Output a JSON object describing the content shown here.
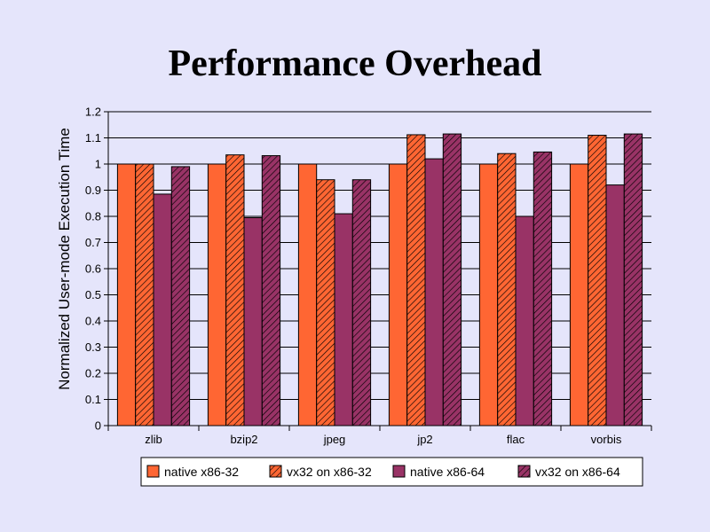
{
  "chart_data": {
    "type": "bar",
    "title": "Performance Overhead",
    "xlabel": "",
    "ylabel": "Normalized User-mode Execution Time",
    "ylim": [
      0,
      1.2
    ],
    "ytick_step": 0.1,
    "ytick_labels": [
      "0",
      "0.1",
      "0.2",
      "0.3",
      "0.4",
      "0.5",
      "0.6",
      "0.7",
      "0.8",
      "0.9",
      "1",
      "1.1",
      "1.2"
    ],
    "grid": true,
    "legend_position": "bottom",
    "categories": [
      "zlib",
      "bzip2",
      "jpeg",
      "jp2",
      "flac",
      "vorbis"
    ],
    "series": [
      {
        "name": "native x86-32",
        "color": "#ff6633",
        "hatched": false,
        "values": [
          1.0,
          1.0,
          1.0,
          1.0,
          1.0,
          1.0
        ]
      },
      {
        "name": "vx32 on x86-32",
        "color": "#ff6633",
        "hatched": true,
        "values": [
          1.0,
          1.035,
          0.94,
          1.112,
          1.04,
          1.11
        ]
      },
      {
        "name": "native x86-64",
        "color": "#993366",
        "hatched": false,
        "values": [
          0.885,
          0.795,
          0.81,
          1.02,
          0.8,
          0.92
        ]
      },
      {
        "name": "vx32 on x86-64",
        "color": "#993366",
        "hatched": true,
        "values": [
          0.99,
          1.032,
          0.94,
          1.115,
          1.046,
          1.115
        ]
      }
    ]
  }
}
